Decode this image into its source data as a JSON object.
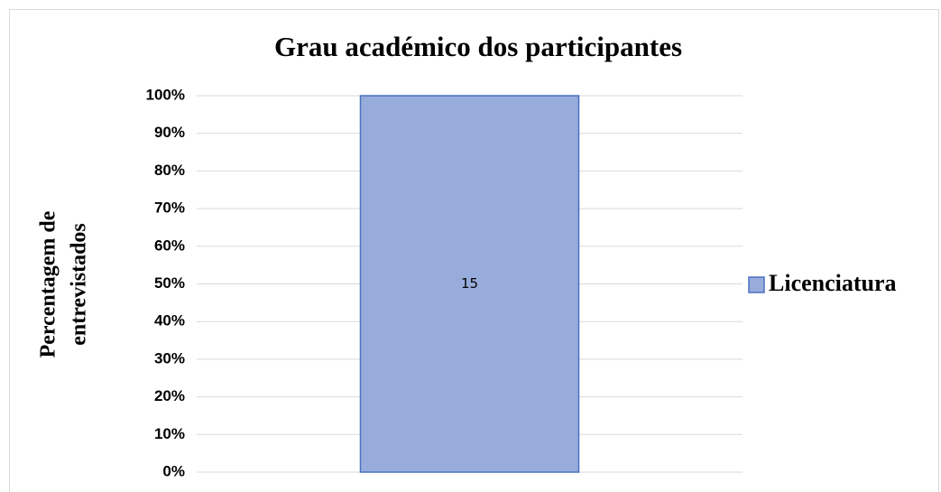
{
  "chart_data": {
    "type": "bar",
    "stacking": "percent",
    "title": "Grau académico dos participantes",
    "ylabel": [
      "Percentagem de",
      "entrevistados"
    ],
    "categories": [
      null
    ],
    "series": [
      {
        "name": "Licenciatura",
        "color": "#98acdc",
        "values": [
          15
        ]
      }
    ],
    "ylim": [
      0,
      100
    ],
    "yticks": [
      {
        "value": 0,
        "label": "0%"
      },
      {
        "value": 10,
        "label": "10%"
      },
      {
        "value": 20,
        "label": "20%"
      },
      {
        "value": 30,
        "label": "30%"
      },
      {
        "value": 40,
        "label": "40%"
      },
      {
        "value": 50,
        "label": "50%"
      },
      {
        "value": 60,
        "label": "60%"
      },
      {
        "value": 70,
        "label": "70%"
      },
      {
        "value": 80,
        "label": "80%"
      },
      {
        "value": 90,
        "label": "90%"
      },
      {
        "value": 100,
        "label": "100%"
      }
    ],
    "grid": true,
    "legend": "right"
  }
}
